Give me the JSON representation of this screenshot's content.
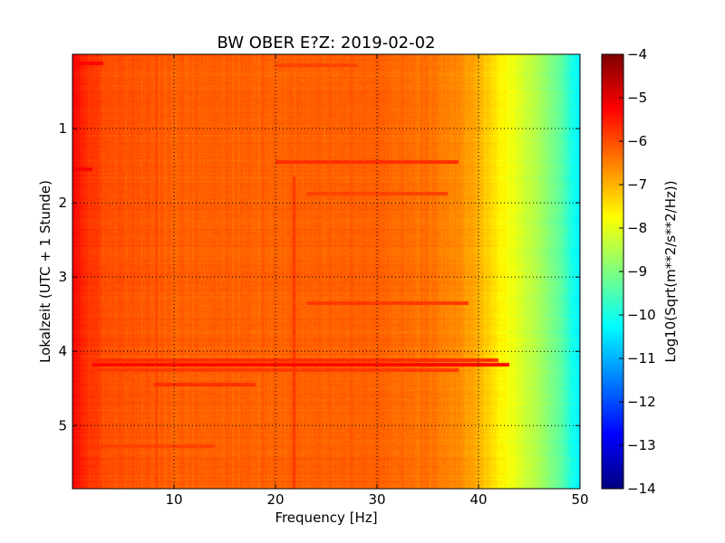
{
  "chart_data": {
    "type": "heatmap",
    "title": "BW OBER E?Z: 2019-02-02",
    "xlabel": "Frequency [Hz]",
    "ylabel": "Lokalzeit (UTC + 1 Stunde)",
    "xlim": [
      0,
      50
    ],
    "ylim": [
      5.85,
      0
    ],
    "x_ticks": [
      10,
      20,
      30,
      40,
      50
    ],
    "y_ticks": [
      1,
      2,
      3,
      4,
      5
    ],
    "grid": true,
    "grid_style": "dotted",
    "colormap": "jet",
    "colorbar": {
      "label": "Log10(Sqrt(m**2/s**2/Hz))",
      "range": [
        -14,
        -4
      ],
      "ticks": [
        -4,
        -5,
        -6,
        -7,
        -8,
        -9,
        -10,
        -11,
        -12,
        -13,
        -14
      ]
    },
    "frequency_profile": [
      {
        "f": 0,
        "value": -5.3
      },
      {
        "f": 1,
        "value": -5.6
      },
      {
        "f": 3,
        "value": -6.0
      },
      {
        "f": 10,
        "value": -6.2
      },
      {
        "f": 20,
        "value": -6.2
      },
      {
        "f": 30,
        "value": -6.2
      },
      {
        "f": 36,
        "value": -6.4
      },
      {
        "f": 38,
        "value": -6.6
      },
      {
        "f": 40,
        "value": -7.0
      },
      {
        "f": 42,
        "value": -7.6
      },
      {
        "f": 44,
        "value": -8.1
      },
      {
        "f": 46,
        "value": -8.6
      },
      {
        "f": 48,
        "value": -9.3
      },
      {
        "f": 50,
        "value": -10.4
      }
    ],
    "features": [
      {
        "kind": "horizontal_band",
        "time": 4.18,
        "f_start": 2,
        "f_end": 43,
        "value": -5.3
      },
      {
        "kind": "horizontal_band",
        "time": 4.12,
        "f_start": 2,
        "f_end": 42,
        "value": -5.7
      },
      {
        "kind": "horizontal_band",
        "time": 4.25,
        "f_start": 2,
        "f_end": 38,
        "value": -5.8
      },
      {
        "kind": "horizontal_band",
        "time": 4.45,
        "f_start": 8,
        "f_end": 18,
        "value": -5.7
      },
      {
        "kind": "horizontal_band",
        "time": 1.45,
        "f_start": 20,
        "f_end": 38,
        "value": -5.7
      },
      {
        "kind": "horizontal_band",
        "time": 1.88,
        "f_start": 23,
        "f_end": 37,
        "value": -5.9
      },
      {
        "kind": "horizontal_band",
        "time": 3.35,
        "f_start": 23,
        "f_end": 39,
        "value": -5.8
      },
      {
        "kind": "horizontal_band",
        "time": 0.15,
        "f_start": 20,
        "f_end": 28,
        "value": -5.9
      },
      {
        "kind": "horizontal_band",
        "time": 5.28,
        "f_start": 2,
        "f_end": 14,
        "value": -5.9
      },
      {
        "kind": "horizontal_band",
        "time": 1.55,
        "f_start": 0,
        "f_end": 2,
        "value": -5.2
      },
      {
        "kind": "horizontal_band",
        "time": 0.12,
        "f_start": 0,
        "f_end": 3,
        "value": -5.3
      },
      {
        "kind": "vertical_band",
        "f": 21.8,
        "t_start": 1.65,
        "t_end": 5.85,
        "value": -5.8
      },
      {
        "kind": "vertical_band",
        "f": 8.3,
        "t_start": 0,
        "t_end": 5.85,
        "value": -5.9
      }
    ]
  }
}
